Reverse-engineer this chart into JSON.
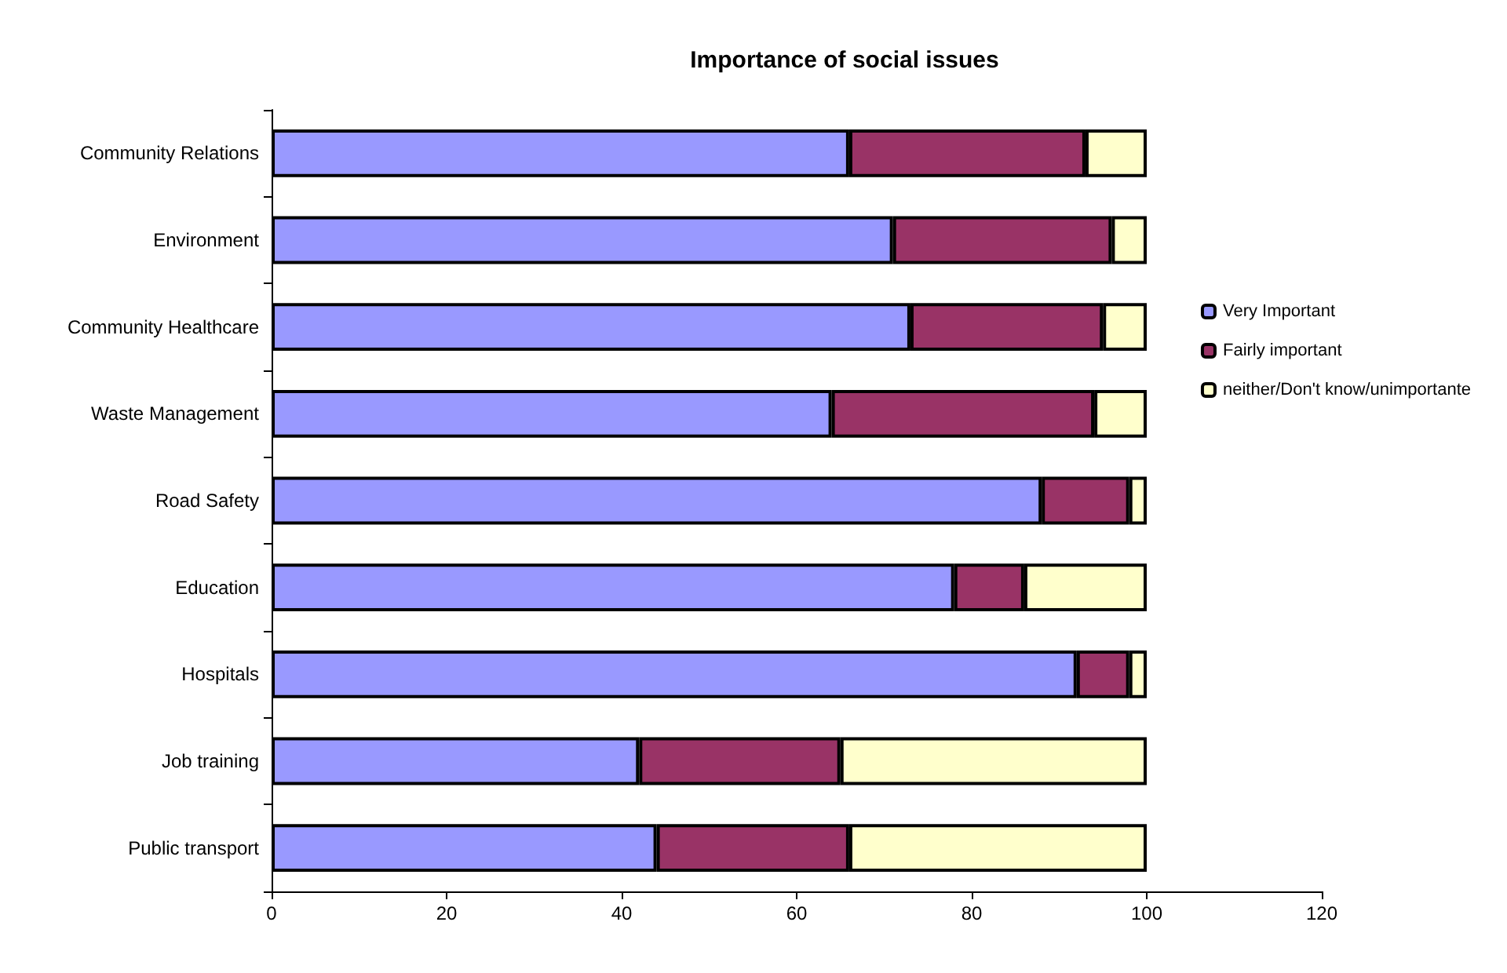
{
  "chart_data": {
    "type": "bar",
    "title": "Importance of social issues",
    "orientation": "horizontal",
    "stacked": true,
    "categories": [
      "Community Relations",
      "Environment",
      "Community Healthcare",
      "Waste Management",
      "Road Safety",
      "Education",
      "Hospitals",
      "Job training",
      "Public transport"
    ],
    "series": [
      {
        "name": "Very Important",
        "color": "#9999ff",
        "values": [
          66,
          71,
          73,
          64,
          88,
          78,
          92,
          42,
          44
        ]
      },
      {
        "name": "Fairly important",
        "color": "#993366",
        "values": [
          27,
          25,
          22,
          30,
          10,
          8,
          6,
          23,
          22
        ]
      },
      {
        "name": "neither/Don't know/unimportante",
        "color": "#ffffcc",
        "values": [
          7,
          4,
          5,
          6,
          2,
          14,
          2,
          35,
          34
        ]
      }
    ],
    "xlim": [
      0,
      120
    ],
    "xticks": [
      0,
      20,
      40,
      60,
      80,
      100,
      120
    ],
    "grid": false,
    "legend": "right"
  }
}
